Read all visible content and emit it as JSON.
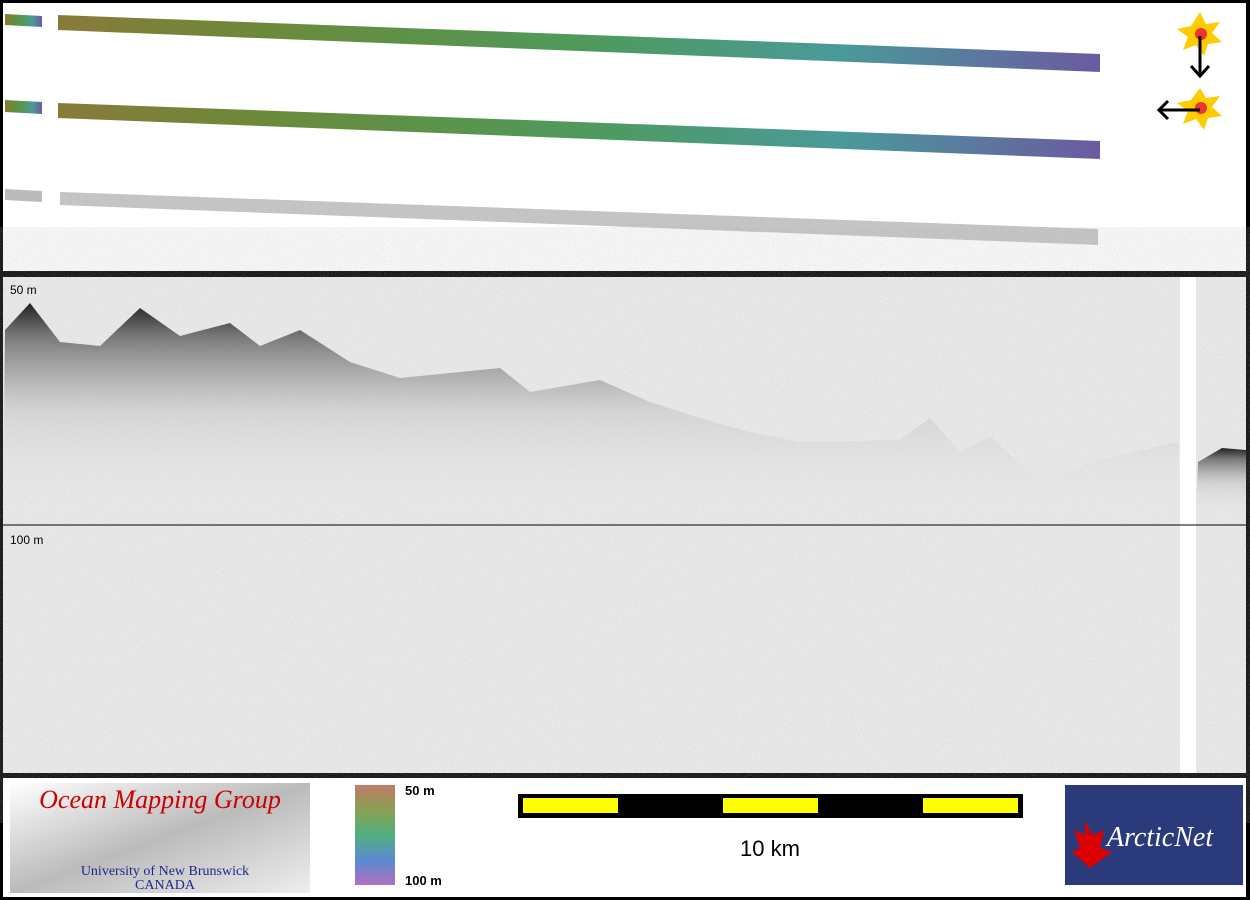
{
  "profile": {
    "upper_depth_label": "50 m",
    "lower_depth_label": "100 m"
  },
  "legend": {
    "logo_title": "Ocean Mapping Group",
    "logo_university": "University of New Brunswick",
    "logo_country": "CANADA",
    "colorbar_top": "50 m",
    "colorbar_bottom": "100 m",
    "scale_bar": "10 km",
    "partner_logo": "ArcticNet"
  }
}
